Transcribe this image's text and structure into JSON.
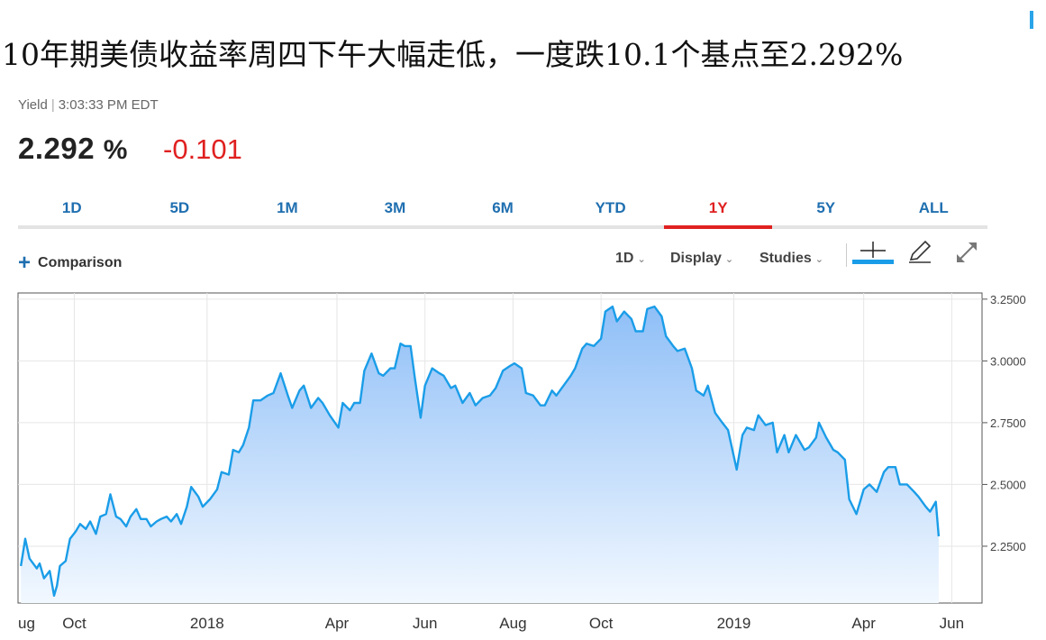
{
  "headline": "10年期美债收益率周四下午大幅走低，一度跌10.1个基点至2.292%",
  "quote": {
    "label": "Yield",
    "time": "3:03:33 PM EDT",
    "price": "2.292",
    "unit": "%",
    "change": "-0.101"
  },
  "ranges": [
    "1D",
    "5D",
    "1M",
    "3M",
    "6M",
    "YTD",
    "1Y",
    "5Y",
    "ALL"
  ],
  "active_range": "1Y",
  "toolbar": {
    "comparison_label": "Comparison",
    "interval_label": "1D",
    "display_label": "Display",
    "studies_label": "Studies"
  },
  "colors": {
    "line": "#1a9de8",
    "fill_top": "#8fbff7",
    "fill_bottom": "#f2f8ff",
    "positive_tab": "#1f6fb0",
    "negative": "#e02020"
  },
  "chart_data": {
    "type": "area",
    "series": [
      {
        "values": [
          [
            "2017-08-25",
            2.17
          ],
          [
            "2017-08-28",
            2.28
          ],
          [
            "2017-08-31",
            2.2
          ],
          [
            "2017-09-05",
            2.16
          ],
          [
            "2017-09-07",
            2.18
          ],
          [
            "2017-09-10",
            2.12
          ],
          [
            "2017-09-14",
            2.15
          ],
          [
            "2017-09-17",
            2.05
          ],
          [
            "2017-09-19",
            2.09
          ],
          [
            "2017-09-21",
            2.17
          ],
          [
            "2017-09-25",
            2.19
          ],
          [
            "2017-09-28",
            2.28
          ],
          [
            "2017-10-02",
            2.31
          ],
          [
            "2017-10-05",
            2.34
          ],
          [
            "2017-10-09",
            2.32
          ],
          [
            "2017-10-12",
            2.35
          ],
          [
            "2017-10-16",
            2.3
          ],
          [
            "2017-10-19",
            2.37
          ],
          [
            "2017-10-23",
            2.38
          ],
          [
            "2017-10-26",
            2.46
          ],
          [
            "2017-10-30",
            2.37
          ],
          [
            "2017-11-02",
            2.36
          ],
          [
            "2017-11-06",
            2.33
          ],
          [
            "2017-11-09",
            2.37
          ],
          [
            "2017-11-13",
            2.4
          ],
          [
            "2017-11-16",
            2.36
          ],
          [
            "2017-11-20",
            2.36
          ],
          [
            "2017-11-23",
            2.33
          ],
          [
            "2017-11-27",
            2.35
          ],
          [
            "2017-11-30",
            2.36
          ],
          [
            "2017-12-04",
            2.37
          ],
          [
            "2017-12-07",
            2.35
          ],
          [
            "2017-12-11",
            2.38
          ],
          [
            "2017-12-14",
            2.34
          ],
          [
            "2017-12-18",
            2.41
          ],
          [
            "2017-12-21",
            2.49
          ],
          [
            "2017-12-26",
            2.45
          ],
          [
            "2017-12-29",
            2.41
          ],
          [
            "2018-01-03",
            2.44
          ],
          [
            "2018-01-08",
            2.48
          ],
          [
            "2018-01-11",
            2.55
          ],
          [
            "2018-01-16",
            2.54
          ],
          [
            "2018-01-19",
            2.64
          ],
          [
            "2018-01-23",
            2.63
          ],
          [
            "2018-01-26",
            2.66
          ],
          [
            "2018-01-30",
            2.73
          ],
          [
            "2018-02-02",
            2.84
          ],
          [
            "2018-02-07",
            2.84
          ],
          [
            "2018-02-12",
            2.86
          ],
          [
            "2018-02-16",
            2.87
          ],
          [
            "2018-02-21",
            2.95
          ],
          [
            "2018-02-26",
            2.86
          ],
          [
            "2018-03-01",
            2.81
          ],
          [
            "2018-03-06",
            2.88
          ],
          [
            "2018-03-09",
            2.9
          ],
          [
            "2018-03-14",
            2.81
          ],
          [
            "2018-03-19",
            2.85
          ],
          [
            "2018-03-22",
            2.83
          ],
          [
            "2018-03-27",
            2.78
          ],
          [
            "2018-04-02",
            2.73
          ],
          [
            "2018-04-05",
            2.83
          ],
          [
            "2018-04-10",
            2.8
          ],
          [
            "2018-04-13",
            2.83
          ],
          [
            "2018-04-17",
            2.83
          ],
          [
            "2018-04-20",
            2.96
          ],
          [
            "2018-04-25",
            3.03
          ],
          [
            "2018-04-30",
            2.95
          ],
          [
            "2018-05-03",
            2.94
          ],
          [
            "2018-05-08",
            2.97
          ],
          [
            "2018-05-11",
            2.97
          ],
          [
            "2018-05-15",
            3.07
          ],
          [
            "2018-05-18",
            3.06
          ],
          [
            "2018-05-22",
            3.06
          ],
          [
            "2018-05-25",
            2.93
          ],
          [
            "2018-05-29",
            2.77
          ],
          [
            "2018-06-01",
            2.9
          ],
          [
            "2018-06-06",
            2.97
          ],
          [
            "2018-06-11",
            2.95
          ],
          [
            "2018-06-14",
            2.94
          ],
          [
            "2018-06-19",
            2.89
          ],
          [
            "2018-06-22",
            2.9
          ],
          [
            "2018-06-27",
            2.83
          ],
          [
            "2018-07-02",
            2.87
          ],
          [
            "2018-07-06",
            2.82
          ],
          [
            "2018-07-11",
            2.85
          ],
          [
            "2018-07-16",
            2.86
          ],
          [
            "2018-07-20",
            2.89
          ],
          [
            "2018-07-25",
            2.96
          ],
          [
            "2018-07-30",
            2.98
          ],
          [
            "2018-08-02",
            2.99
          ],
          [
            "2018-08-07",
            2.97
          ],
          [
            "2018-08-10",
            2.87
          ],
          [
            "2018-08-15",
            2.86
          ],
          [
            "2018-08-20",
            2.82
          ],
          [
            "2018-08-23",
            2.82
          ],
          [
            "2018-08-28",
            2.88
          ],
          [
            "2018-08-31",
            2.86
          ],
          [
            "2018-09-05",
            2.9
          ],
          [
            "2018-09-10",
            2.94
          ],
          [
            "2018-09-13",
            2.97
          ],
          [
            "2018-09-18",
            3.05
          ],
          [
            "2018-09-21",
            3.07
          ],
          [
            "2018-09-26",
            3.06
          ],
          [
            "2018-10-01",
            3.09
          ],
          [
            "2018-10-04",
            3.2
          ],
          [
            "2018-10-09",
            3.22
          ],
          [
            "2018-10-12",
            3.16
          ],
          [
            "2018-10-17",
            3.2
          ],
          [
            "2018-10-22",
            3.17
          ],
          [
            "2018-10-25",
            3.12
          ],
          [
            "2018-10-30",
            3.12
          ],
          [
            "2018-11-02",
            3.21
          ],
          [
            "2018-11-07",
            3.22
          ],
          [
            "2018-11-12",
            3.18
          ],
          [
            "2018-11-15",
            3.1
          ],
          [
            "2018-11-20",
            3.06
          ],
          [
            "2018-11-23",
            3.04
          ],
          [
            "2018-11-28",
            3.05
          ],
          [
            "2018-12-03",
            2.97
          ],
          [
            "2018-12-06",
            2.88
          ],
          [
            "2018-12-11",
            2.86
          ],
          [
            "2018-12-14",
            2.9
          ],
          [
            "2018-12-19",
            2.79
          ],
          [
            "2018-12-24",
            2.75
          ],
          [
            "2018-12-28",
            2.72
          ],
          [
            "2019-01-03",
            2.56
          ],
          [
            "2019-01-07",
            2.7
          ],
          [
            "2019-01-10",
            2.73
          ],
          [
            "2019-01-15",
            2.72
          ],
          [
            "2019-01-18",
            2.78
          ],
          [
            "2019-01-23",
            2.74
          ],
          [
            "2019-01-28",
            2.75
          ],
          [
            "2019-01-31",
            2.63
          ],
          [
            "2019-02-05",
            2.7
          ],
          [
            "2019-02-08",
            2.63
          ],
          [
            "2019-02-13",
            2.7
          ],
          [
            "2019-02-19",
            2.64
          ],
          [
            "2019-02-22",
            2.65
          ],
          [
            "2019-02-27",
            2.69
          ],
          [
            "2019-03-01",
            2.75
          ],
          [
            "2019-03-06",
            2.69
          ],
          [
            "2019-03-11",
            2.64
          ],
          [
            "2019-03-14",
            2.63
          ],
          [
            "2019-03-19",
            2.6
          ],
          [
            "2019-03-22",
            2.44
          ],
          [
            "2019-03-27",
            2.38
          ],
          [
            "2019-04-01",
            2.48
          ],
          [
            "2019-04-05",
            2.5
          ],
          [
            "2019-04-10",
            2.47
          ],
          [
            "2019-04-15",
            2.55
          ],
          [
            "2019-04-18",
            2.57
          ],
          [
            "2019-04-23",
            2.57
          ],
          [
            "2019-04-26",
            2.5
          ],
          [
            "2019-05-01",
            2.5
          ],
          [
            "2019-05-06",
            2.47
          ],
          [
            "2019-05-09",
            2.45
          ],
          [
            "2019-05-14",
            2.41
          ],
          [
            "2019-05-17",
            2.39
          ],
          [
            "2019-05-21",
            2.43
          ],
          [
            "2019-05-23",
            2.29
          ]
        ]
      }
    ],
    "x_ticks": [
      {
        "date": "2017-08-01",
        "label": "ug"
      },
      {
        "date": "2017-10-01",
        "label": "Oct"
      },
      {
        "date": "2018-01-01",
        "label": "2018"
      },
      {
        "date": "2018-04-01",
        "label": "Apr"
      },
      {
        "date": "2018-06-01",
        "label": "Jun"
      },
      {
        "date": "2018-08-01",
        "label": "Aug"
      },
      {
        "date": "2018-10-01",
        "label": "Oct"
      },
      {
        "date": "2019-01-01",
        "label": "2019"
      },
      {
        "date": "2019-04-01",
        "label": "Apr"
      },
      {
        "date": "2019-06-01",
        "label": "Jun"
      }
    ],
    "xlim": [
      "2017-08-23",
      "2019-06-22"
    ],
    "y_ticks": [
      "3.2500",
      "3.0000",
      "2.7500",
      "2.5000",
      "2.2500"
    ],
    "ylim": [
      2.02,
      3.275
    ],
    "grid": true,
    "y_axis_side": "right"
  }
}
